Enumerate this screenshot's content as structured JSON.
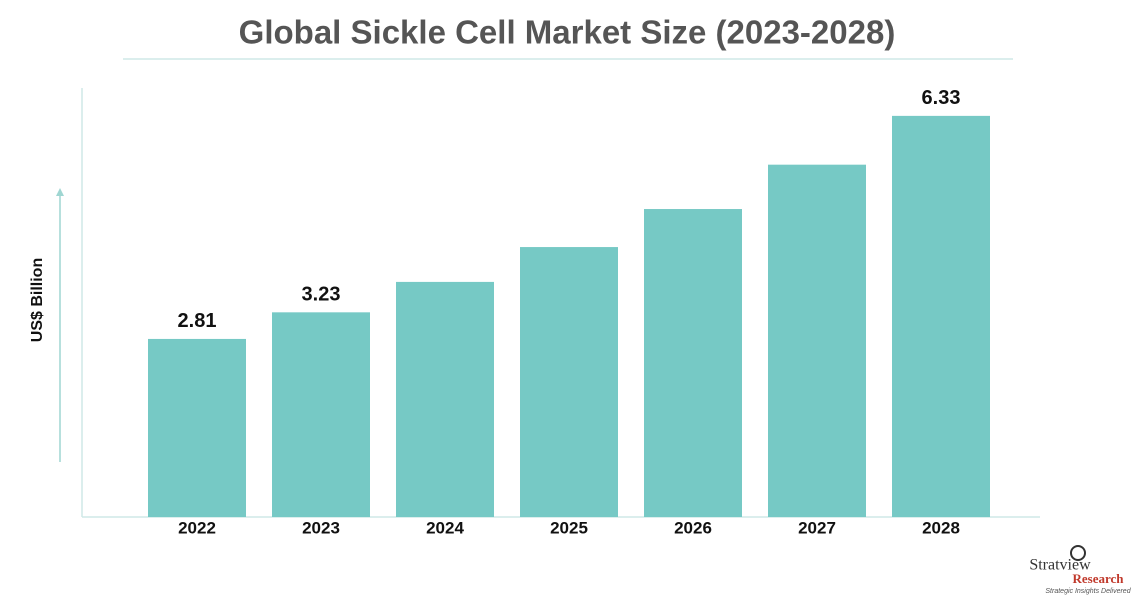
{
  "chart_data": {
    "type": "bar",
    "title": "Global Sickle Cell Market Size (2023-2028)",
    "y_label": "US$ Billion",
    "categories": [
      "2022",
      "2023",
      "2024",
      "2025",
      "2026",
      "2027",
      "2028"
    ],
    "values": [
      2.81,
      3.23,
      3.71,
      4.26,
      4.86,
      5.56,
      6.33
    ],
    "value_labels": [
      "2.81",
      "3.23",
      null,
      null,
      null,
      null,
      "6.33"
    ],
    "color": "#76c9c5",
    "ylim": [
      0,
      6.77
    ]
  },
  "branding": {
    "name": "Stratview",
    "subname": "Research",
    "tagline": "Strategic Insights Delivered"
  }
}
